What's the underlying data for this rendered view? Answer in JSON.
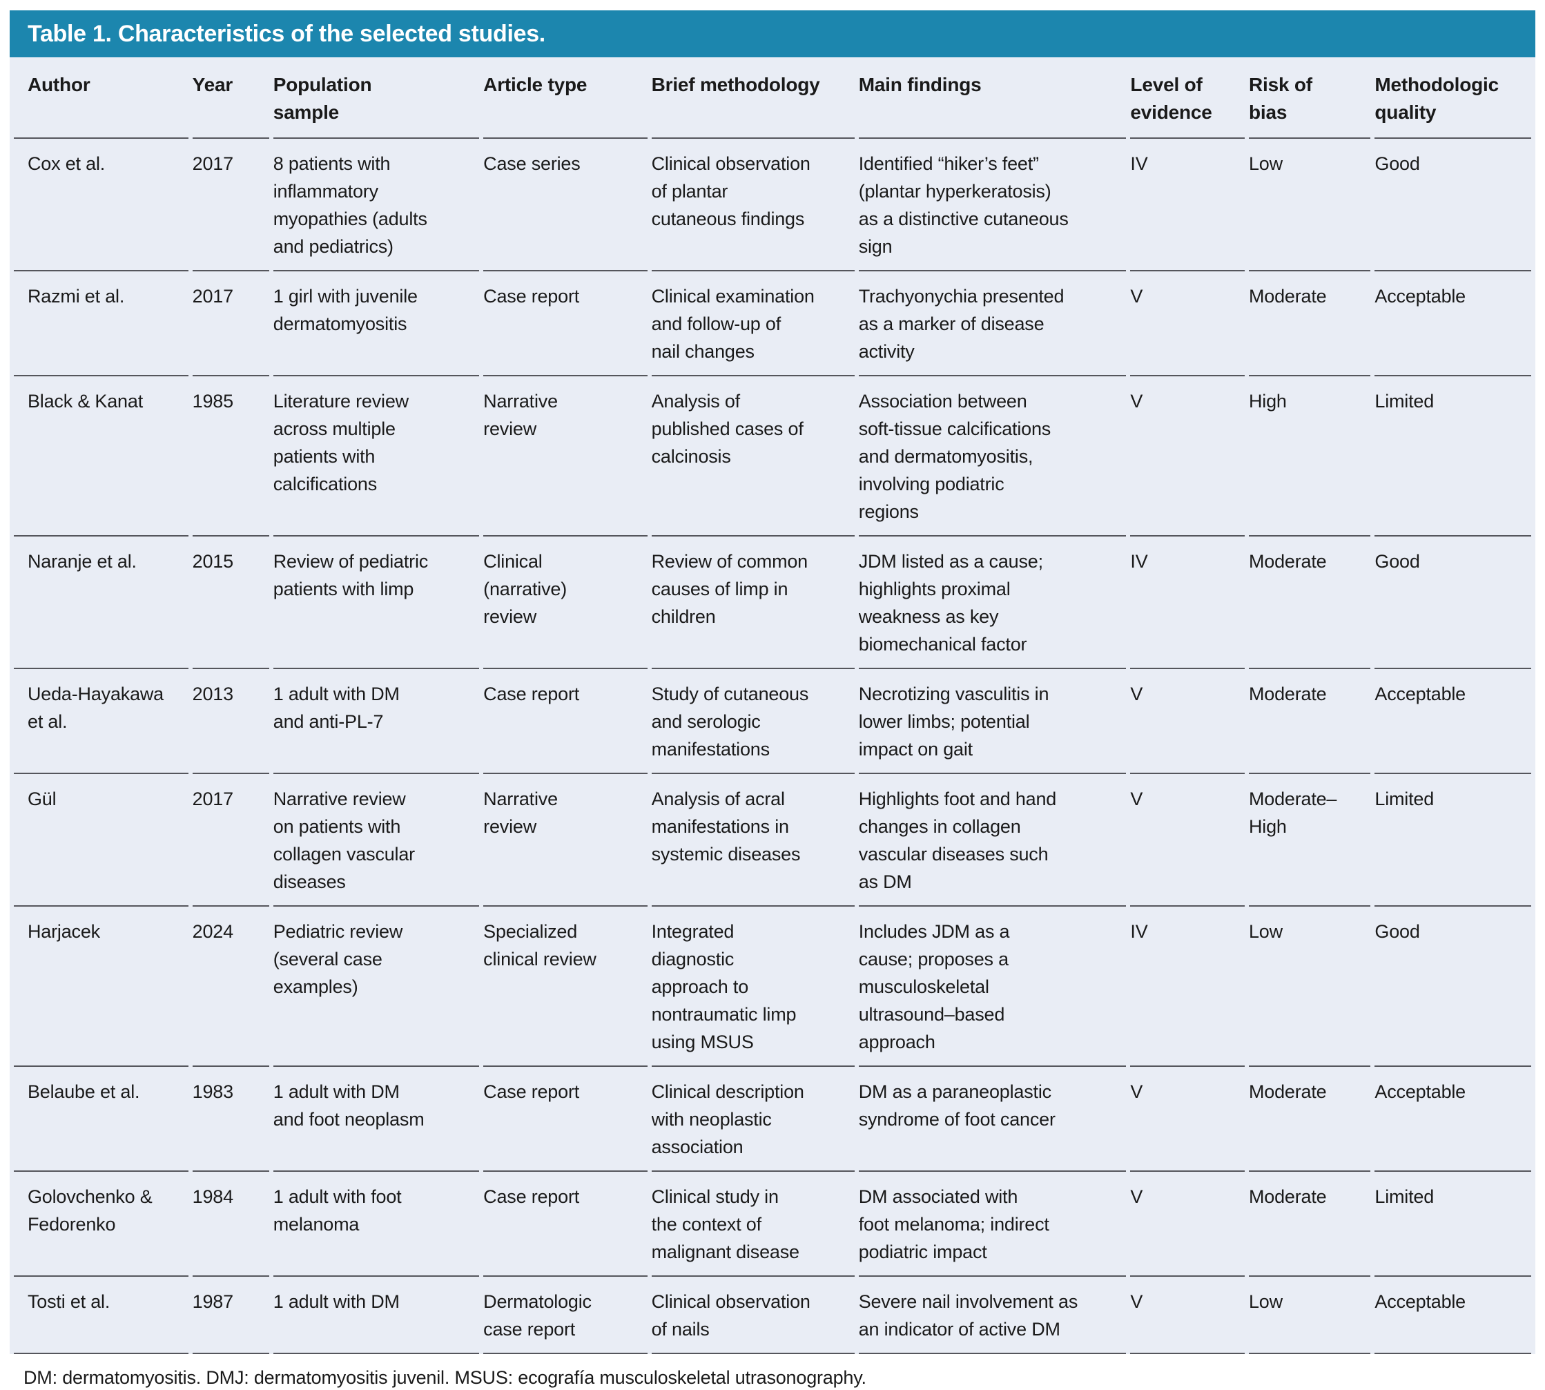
{
  "table": {
    "title": "Table 1. Characteristics of the selected studies.",
    "columns": [
      {
        "key": "author",
        "label": "Author"
      },
      {
        "key": "year",
        "label": "Year"
      },
      {
        "key": "population",
        "label": "Population\nsample"
      },
      {
        "key": "article_type",
        "label": "Article type"
      },
      {
        "key": "methodology",
        "label": "Brief methodology"
      },
      {
        "key": "findings",
        "label": "Main findings"
      },
      {
        "key": "evidence",
        "label": "Level of\nevidence"
      },
      {
        "key": "bias",
        "label": "Risk of\nbias"
      },
      {
        "key": "quality",
        "label": "Methodologic\nquality"
      }
    ],
    "rows": [
      {
        "author": "Cox et al.",
        "year": "2017",
        "population": "8 patients with\ninflammatory\nmyopathies (adults\nand pediatrics)",
        "article_type": "Case series",
        "methodology": "Clinical observation\nof plantar\ncutaneous findings",
        "findings": "Identified “hiker’s feet”\n(plantar hyperkeratosis)\nas a distinctive cutaneous\nsign",
        "evidence": "IV",
        "bias": "Low",
        "quality": "Good"
      },
      {
        "author": "Razmi et al.",
        "year": "2017",
        "population": "1 girl with juvenile\ndermatomyositis",
        "article_type": "Case report",
        "methodology": "Clinical examination\nand follow-up of\nnail changes",
        "findings": "Trachyonychia presented\nas a marker of disease\nactivity",
        "evidence": "V",
        "bias": "Moderate",
        "quality": "Acceptable"
      },
      {
        "author": "Black & Kanat",
        "year": "1985",
        "population": "Literature review\nacross multiple\npatients with\ncalcifications",
        "article_type": "Narrative\nreview",
        "methodology": "Analysis of\npublished cases of\ncalcinosis",
        "findings": "Association between\nsoft-tissue calcifications\nand dermatomyositis,\ninvolving podiatric\nregions",
        "evidence": "V",
        "bias": "High",
        "quality": "Limited"
      },
      {
        "author": "Naranje et al.",
        "year": "2015",
        "population": "Review of pediatric\npatients with limp",
        "article_type": "Clinical\n(narrative)\nreview",
        "methodology": "Review of common\ncauses of limp in\nchildren",
        "findings": "JDM listed as a cause;\nhighlights proximal\nweakness as key\nbiomechanical factor",
        "evidence": "IV",
        "bias": "Moderate",
        "quality": "Good"
      },
      {
        "author": "Ueda-Hayakawa\net al.",
        "year": "2013",
        "population": "1 adult with DM\nand anti-PL-7",
        "article_type": "Case report",
        "methodology": "Study of cutaneous\nand serologic\nmanifestations",
        "findings": "Necrotizing vasculitis in\nlower limbs; potential\nimpact on gait",
        "evidence": "V",
        "bias": "Moderate",
        "quality": "Acceptable"
      },
      {
        "author": "Gül",
        "year": "2017",
        "population": "Narrative review\non patients with\ncollagen vascular\ndiseases",
        "article_type": "Narrative\nreview",
        "methodology": "Analysis of acral\nmanifestations in\nsystemic diseases",
        "findings": "Highlights foot and hand\nchanges in collagen\nvascular diseases such\nas DM",
        "evidence": "V",
        "bias": "Moderate–\nHigh",
        "quality": "Limited"
      },
      {
        "author": "Harjacek",
        "year": "2024",
        "population": "Pediatric review\n(several case\nexamples)",
        "article_type": "Specialized\nclinical review",
        "methodology": "Integrated\ndiagnostic\napproach to\nnontraumatic limp\nusing MSUS",
        "findings": "Includes JDM as a\ncause; proposes a\nmusculoskeletal\nultrasound–based\napproach",
        "evidence": "IV",
        "bias": "Low",
        "quality": "Good"
      },
      {
        "author": "Belaube et al.",
        "year": "1983",
        "population": "1 adult with DM\nand foot neoplasm",
        "article_type": "Case report",
        "methodology": "Clinical description\nwith neoplastic\nassociation",
        "findings": "DM as a paraneoplastic\nsyndrome of foot cancer",
        "evidence": "V",
        "bias": "Moderate",
        "quality": "Acceptable"
      },
      {
        "author": "Golovchenko &\nFedorenko",
        "year": "1984",
        "population": "1 adult with foot\nmelanoma",
        "article_type": "Case report",
        "methodology": "Clinical study in\nthe context of\nmalignant disease",
        "findings": "DM associated with\nfoot melanoma; indirect\npodiatric impact",
        "evidence": "V",
        "bias": "Moderate",
        "quality": "Limited"
      },
      {
        "author": "Tosti et al.",
        "year": "1987",
        "population": "1 adult with DM",
        "article_type": "Dermatologic\ncase report",
        "methodology": "Clinical observation\nof nails",
        "findings": "Severe nail involvement as\nan indicator of active DM",
        "evidence": "V",
        "bias": "Low",
        "quality": "Acceptable"
      }
    ],
    "footnote": "DM: dermatomyositis. DMJ: dermatomyositis juvenil. MSUS: ecografía musculoskeletal utrasonography."
  },
  "colors": {
    "header_bar": "#1c86ae",
    "row_bg": "#e9edf5",
    "divider": "#55565c",
    "text": "#1a1a1a",
    "title_text": "#ffffff"
  }
}
